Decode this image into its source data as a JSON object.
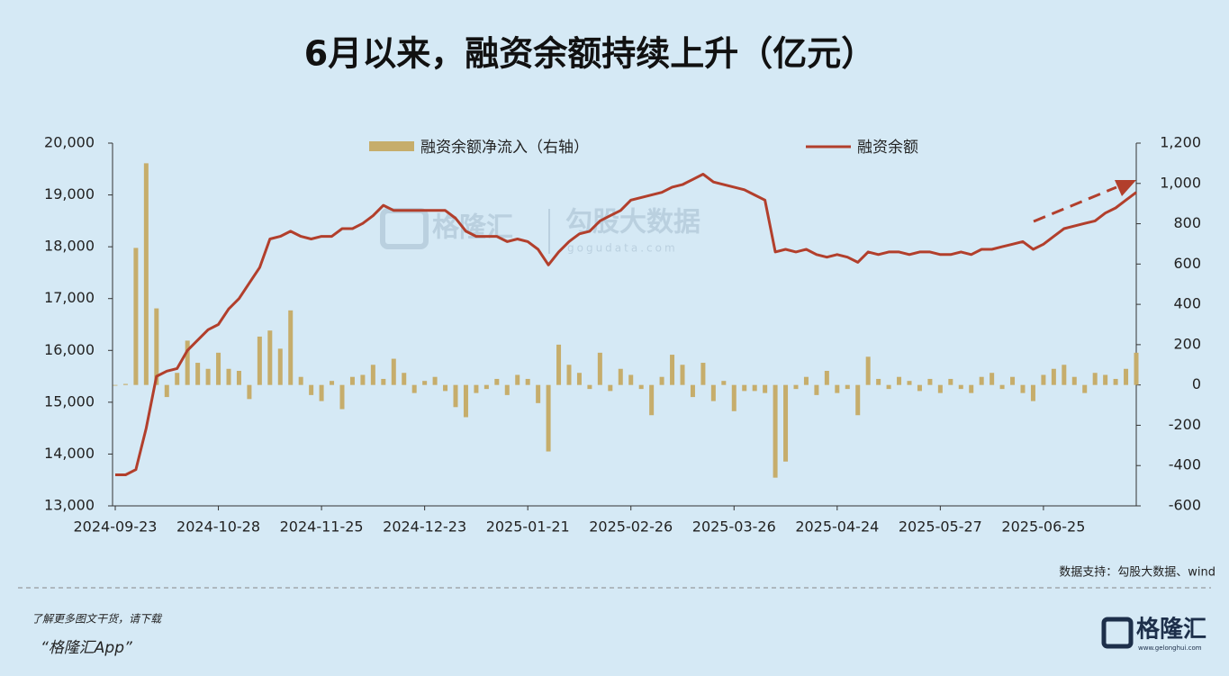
{
  "chart_data": {
    "type": "bar-line",
    "title": "6月以来，融资余额持续上升（亿元）",
    "source": "数据支持：勾股大数据、wind",
    "watermark": [
      "格隆汇",
      "勾股大数据",
      "gogudata.com"
    ],
    "categories": [
      "2024-09-23",
      null,
      null,
      null,
      null,
      null,
      null,
      null,
      null,
      null,
      "2024-10-28",
      null,
      null,
      null,
      null,
      null,
      null,
      null,
      null,
      null,
      "2024-11-25",
      null,
      null,
      null,
      null,
      null,
      null,
      null,
      null,
      null,
      "2024-12-23",
      null,
      null,
      null,
      null,
      null,
      null,
      null,
      null,
      null,
      "2025-01-21",
      null,
      null,
      null,
      null,
      null,
      null,
      null,
      null,
      null,
      "2025-02-26",
      null,
      null,
      null,
      null,
      null,
      null,
      null,
      null,
      null,
      "2025-03-26",
      null,
      null,
      null,
      null,
      null,
      null,
      null,
      null,
      null,
      "2025-04-24",
      null,
      null,
      null,
      null,
      null,
      null,
      null,
      null,
      null,
      "2025-05-27",
      null,
      null,
      null,
      null,
      null,
      null,
      null,
      null,
      null,
      "2025-06-25",
      null,
      null,
      null,
      null,
      null,
      null,
      null,
      null,
      null
    ],
    "series": [
      {
        "name": "融资余额净流入（右轴）",
        "color": "#c6ad6b",
        "kind": "bar",
        "axis": "y2",
        "values": [
          0,
          5,
          680,
          1100,
          380,
          -60,
          60,
          220,
          110,
          80,
          160,
          80,
          70,
          -70,
          240,
          270,
          180,
          370,
          40,
          -50,
          -80,
          20,
          -120,
          40,
          50,
          100,
          30,
          130,
          60,
          -40,
          20,
          40,
          -30,
          -110,
          -160,
          -40,
          -20,
          30,
          -50,
          50,
          30,
          -90,
          -330,
          200,
          100,
          60,
          -20,
          160,
          -30,
          80,
          50,
          -20,
          -150,
          40,
          150,
          100,
          -60,
          110,
          -80,
          20,
          -130,
          -30,
          -30,
          -40,
          -460,
          -380,
          -20,
          40,
          -50,
          70,
          -40,
          -20,
          -150,
          140,
          30,
          -20,
          40,
          20,
          -30,
          30,
          -40,
          30,
          -20,
          -40,
          40,
          60,
          -20,
          40,
          -40,
          -80,
          50,
          80,
          100,
          40,
          -40,
          60,
          50,
          30,
          80,
          160
        ]
      },
      {
        "name": "融资余额",
        "color": "#b23f2c",
        "kind": "line",
        "axis": "y",
        "values": [
          13600,
          13600,
          13700,
          14500,
          15500,
          15600,
          15650,
          16000,
          16200,
          16400,
          16500,
          16800,
          17000,
          17300,
          17600,
          18150,
          18200,
          18300,
          18200,
          18150,
          18200,
          18200,
          18350,
          18350,
          18450,
          18600,
          18800,
          18700,
          18700,
          18700,
          18700,
          18700,
          18700,
          18550,
          18300,
          18200,
          18200,
          18200,
          18100,
          18150,
          18100,
          17950,
          17650,
          17900,
          18100,
          18250,
          18300,
          18500,
          18600,
          18700,
          18900,
          18950,
          19000,
          19050,
          19150,
          19200,
          19300,
          19400,
          19250,
          19200,
          19150,
          19100,
          19000,
          18900,
          17900,
          17950,
          17900,
          17950,
          17850,
          17800,
          17850,
          17800,
          17700,
          17900,
          17850,
          17900,
          17900,
          17850,
          17900,
          17900,
          17850,
          17850,
          17900,
          17850,
          17950,
          17950,
          18000,
          18050,
          18100,
          17950,
          18050,
          18200,
          18350,
          18400,
          18450,
          18500,
          18650,
          18750,
          18900,
          19050
        ]
      }
    ],
    "ylim": [
      13000,
      20000
    ],
    "yticks": [
      {
        "value": 13000,
        "label": "13,000"
      },
      {
        "value": 14000,
        "label": "14,000"
      },
      {
        "value": 15000,
        "label": "15,000"
      },
      {
        "value": 16000,
        "label": "16,000"
      },
      {
        "value": 17000,
        "label": "17,000"
      },
      {
        "value": 18000,
        "label": "18,000"
      },
      {
        "value": 19000,
        "label": "19,000"
      },
      {
        "value": 20000,
        "label": "20,000"
      }
    ],
    "y2lim": [
      -600,
      1200
    ],
    "y2ticks": [
      -600,
      -400,
      -200,
      0,
      200,
      400,
      600,
      800,
      {
        "value": 1000,
        "label": "1,000"
      },
      {
        "value": 1200,
        "label": "1,200"
      }
    ]
  },
  "footer": {
    "prompt": "了解更多图文干货，请下载",
    "app": "“格隆汇App”",
    "logo": "格隆汇",
    "url": "www.gelonghui.com"
  }
}
